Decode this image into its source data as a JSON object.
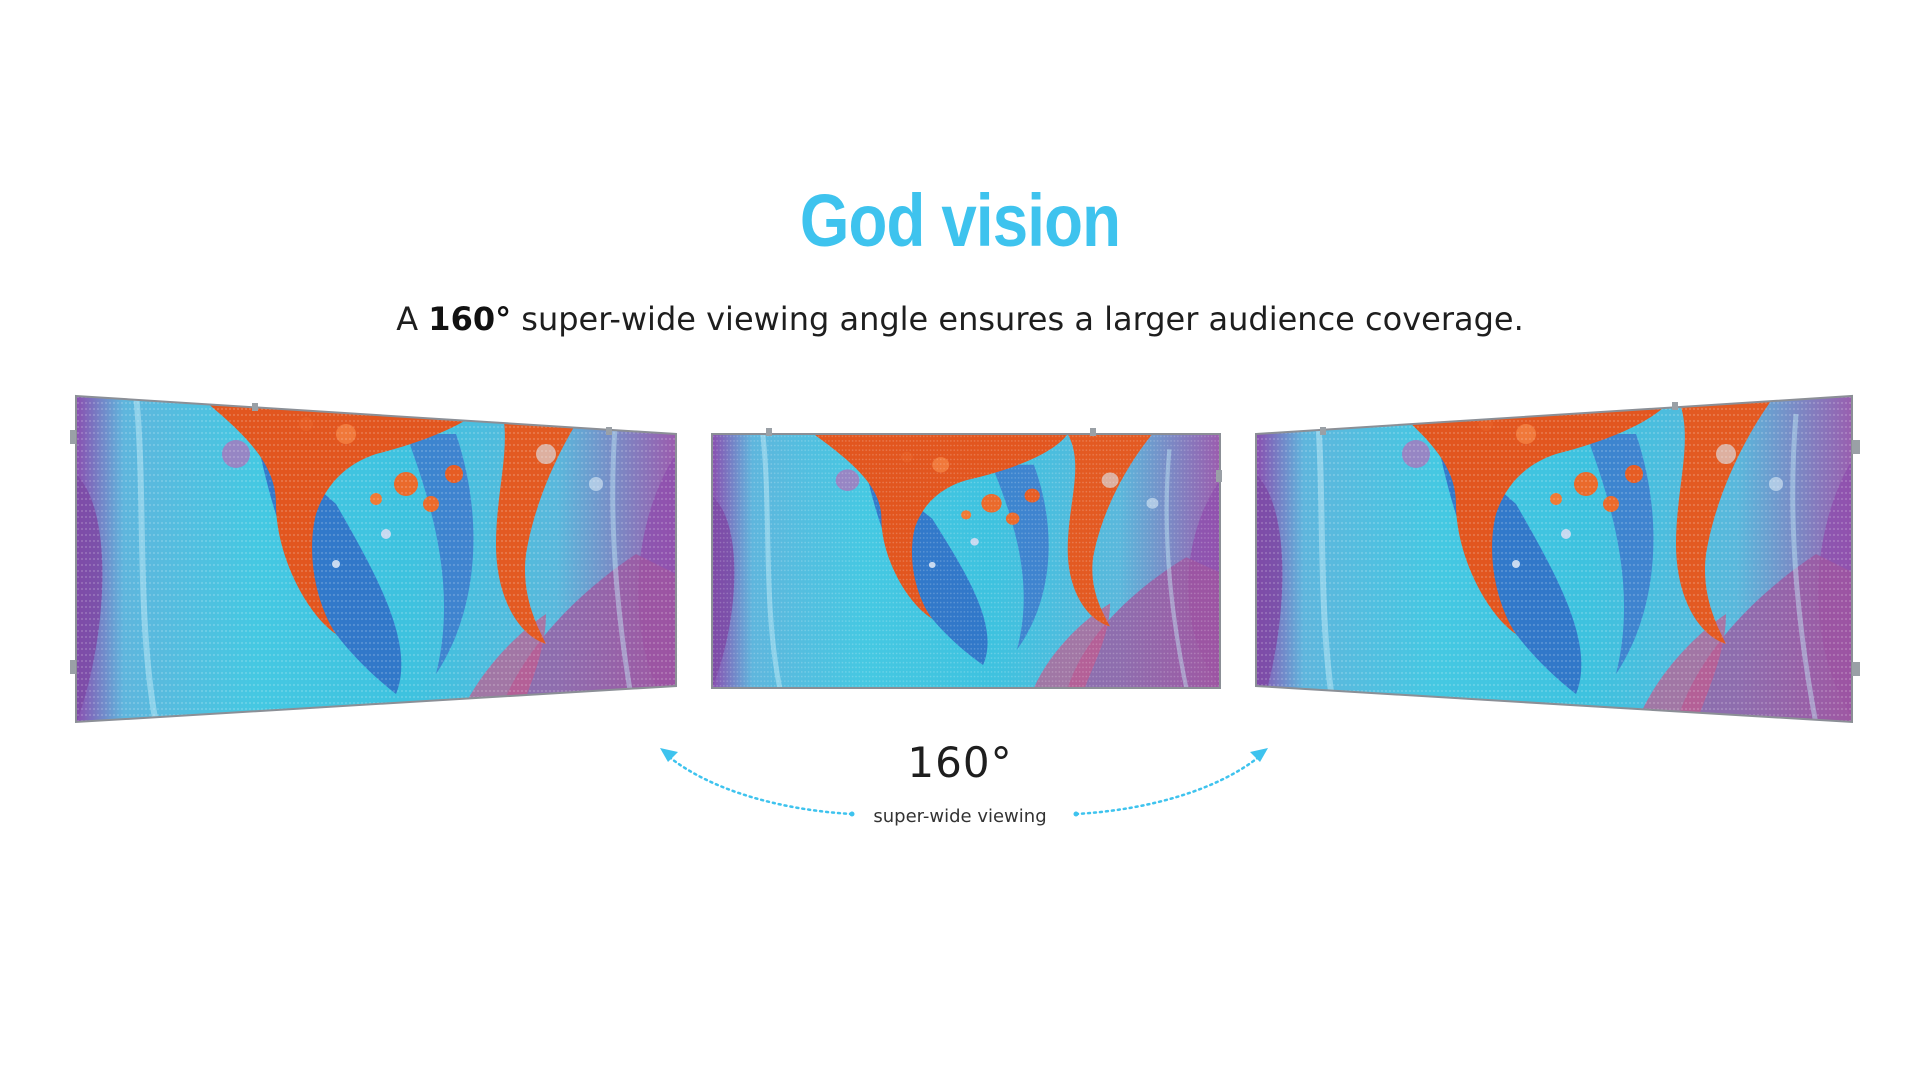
{
  "header": {
    "title": "God vision",
    "subtitle_prefix": "A ",
    "subtitle_bold": "160°",
    "subtitle_suffix": " super-wide viewing angle ensures a larger audience coverage."
  },
  "angle": {
    "value": "160°",
    "caption": "super-wide viewing"
  },
  "colors": {
    "accent": "#3ec3ee",
    "text": "#1e1e1e",
    "screen_cyan": "#41c6e0",
    "screen_orange": "#e2571f",
    "screen_purple": "#7b4aa8"
  },
  "screens": [
    {
      "name": "left-led-screen"
    },
    {
      "name": "center-led-screen"
    },
    {
      "name": "right-led-screen"
    }
  ]
}
